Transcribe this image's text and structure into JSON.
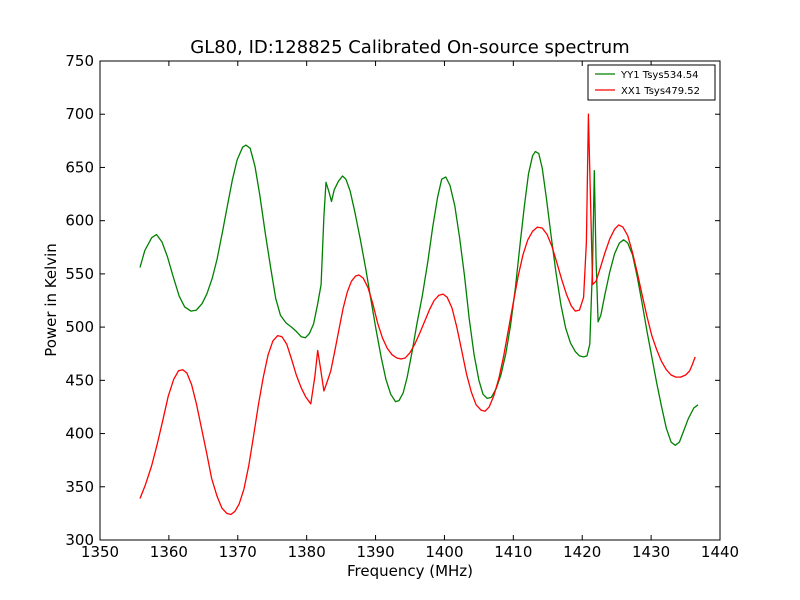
{
  "chart_data": {
    "type": "line",
    "title": "GL80, ID:128825 Calibrated On-source spectrum",
    "xlabel": "Frequency (MHz)",
    "ylabel": "Power in Kelvin",
    "xlim": [
      1350,
      1440
    ],
    "ylim": [
      300,
      750
    ],
    "xticks": [
      1350,
      1360,
      1370,
      1380,
      1390,
      1400,
      1410,
      1420,
      1430,
      1440
    ],
    "yticks": [
      300,
      350,
      400,
      450,
      500,
      550,
      600,
      650,
      700,
      750
    ],
    "xtick_labels": [
      "1350",
      "1360",
      "1370",
      "1380",
      "1390",
      "1400",
      "1410",
      "1420",
      "1430",
      "1440"
    ],
    "ytick_labels": [
      "300",
      "350",
      "400",
      "450",
      "500",
      "550",
      "600",
      "650",
      "700",
      "750"
    ],
    "legend_position": "top-right",
    "grid": false,
    "series": [
      {
        "name": "YY1 Tsys534.54",
        "color": "#008000",
        "points": [
          [
            1355.8,
            556
          ],
          [
            1356.5,
            572
          ],
          [
            1357.5,
            584
          ],
          [
            1358.2,
            587
          ],
          [
            1359,
            580
          ],
          [
            1359.8,
            566
          ],
          [
            1360.6,
            548
          ],
          [
            1361.5,
            529
          ],
          [
            1362.3,
            519
          ],
          [
            1363.2,
            515
          ],
          [
            1364,
            516
          ],
          [
            1364.8,
            522
          ],
          [
            1365.5,
            531
          ],
          [
            1366.3,
            546
          ],
          [
            1367,
            564
          ],
          [
            1367.8,
            590
          ],
          [
            1368.5,
            614
          ],
          [
            1369.2,
            638
          ],
          [
            1369.9,
            657
          ],
          [
            1370.7,
            669
          ],
          [
            1371.2,
            671
          ],
          [
            1371.8,
            668
          ],
          [
            1372.5,
            651
          ],
          [
            1373.2,
            624
          ],
          [
            1374,
            588
          ],
          [
            1374.8,
            555
          ],
          [
            1375.5,
            527
          ],
          [
            1376.2,
            511
          ],
          [
            1377,
            504
          ],
          [
            1377.8,
            500
          ],
          [
            1378.5,
            496
          ],
          [
            1379.2,
            491
          ],
          [
            1379.8,
            490
          ],
          [
            1380.4,
            494
          ],
          [
            1381,
            503
          ],
          [
            1381.6,
            522
          ],
          [
            1382.1,
            540
          ],
          [
            1382.5,
            604
          ],
          [
            1382.8,
            636
          ],
          [
            1383.2,
            628
          ],
          [
            1383.6,
            618
          ],
          [
            1384,
            629
          ],
          [
            1384.6,
            637
          ],
          [
            1385.2,
            642
          ],
          [
            1385.7,
            639
          ],
          [
            1386.3,
            628
          ],
          [
            1387,
            608
          ],
          [
            1387.8,
            582
          ],
          [
            1388.6,
            554
          ],
          [
            1389.3,
            527
          ],
          [
            1390,
            500
          ],
          [
            1390.8,
            472
          ],
          [
            1391.5,
            451
          ],
          [
            1392.2,
            437
          ],
          [
            1392.9,
            430
          ],
          [
            1393.4,
            431
          ],
          [
            1394,
            438
          ],
          [
            1394.6,
            453
          ],
          [
            1395.3,
            477
          ],
          [
            1396,
            503
          ],
          [
            1396.8,
            530
          ],
          [
            1397.6,
            562
          ],
          [
            1398.3,
            594
          ],
          [
            1399,
            622
          ],
          [
            1399.6,
            639
          ],
          [
            1400.2,
            641
          ],
          [
            1400.8,
            633
          ],
          [
            1401.5,
            614
          ],
          [
            1402.2,
            584
          ],
          [
            1402.9,
            549
          ],
          [
            1403.6,
            508
          ],
          [
            1404.3,
            474
          ],
          [
            1405,
            450
          ],
          [
            1405.6,
            437
          ],
          [
            1406.2,
            433
          ],
          [
            1406.8,
            434
          ],
          [
            1407.5,
            442
          ],
          [
            1408.2,
            455
          ],
          [
            1408.9,
            475
          ],
          [
            1409.6,
            502
          ],
          [
            1410.3,
            537
          ],
          [
            1411,
            579
          ],
          [
            1411.6,
            614
          ],
          [
            1412.2,
            644
          ],
          [
            1412.8,
            661
          ],
          [
            1413.2,
            665
          ],
          [
            1413.7,
            663
          ],
          [
            1414.2,
            649
          ],
          [
            1414.8,
            621
          ],
          [
            1415.5,
            585
          ],
          [
            1416.2,
            551
          ],
          [
            1416.9,
            521
          ],
          [
            1417.6,
            499
          ],
          [
            1418.3,
            485
          ],
          [
            1419,
            477
          ],
          [
            1419.6,
            473
          ],
          [
            1420.2,
            472
          ],
          [
            1420.7,
            473
          ],
          [
            1421.1,
            484
          ],
          [
            1421.5,
            560
          ],
          [
            1421.75,
            647
          ],
          [
            1422,
            565
          ],
          [
            1422.3,
            505
          ],
          [
            1422.7,
            511
          ],
          [
            1423.3,
            531
          ],
          [
            1424,
            552
          ],
          [
            1424.7,
            569
          ],
          [
            1425.4,
            579
          ],
          [
            1426,
            582
          ],
          [
            1426.6,
            579
          ],
          [
            1427.3,
            568
          ],
          [
            1428,
            547
          ],
          [
            1428.7,
            522
          ],
          [
            1429.4,
            496
          ],
          [
            1430.1,
            472
          ],
          [
            1430.8,
            448
          ],
          [
            1431.5,
            426
          ],
          [
            1432.2,
            405
          ],
          [
            1432.9,
            392
          ],
          [
            1433.5,
            389
          ],
          [
            1434.1,
            392
          ],
          [
            1434.7,
            402
          ],
          [
            1435.4,
            414
          ],
          [
            1436.2,
            424
          ],
          [
            1436.8,
            427
          ]
        ]
      },
      {
        "name": "XX1 Tsys479.52",
        "color": "#ff0000",
        "points": [
          [
            1355.8,
            339
          ],
          [
            1356.6,
            352
          ],
          [
            1357.5,
            370
          ],
          [
            1358.3,
            390
          ],
          [
            1359.1,
            412
          ],
          [
            1359.9,
            435
          ],
          [
            1360.7,
            451
          ],
          [
            1361.4,
            459
          ],
          [
            1362,
            460
          ],
          [
            1362.6,
            457
          ],
          [
            1363.3,
            446
          ],
          [
            1364,
            428
          ],
          [
            1364.7,
            406
          ],
          [
            1365.5,
            381
          ],
          [
            1366.2,
            358
          ],
          [
            1367,
            341
          ],
          [
            1367.7,
            330
          ],
          [
            1368.4,
            325
          ],
          [
            1369,
            324
          ],
          [
            1369.6,
            327
          ],
          [
            1370.2,
            334
          ],
          [
            1370.9,
            348
          ],
          [
            1371.6,
            370
          ],
          [
            1372.3,
            398
          ],
          [
            1373,
            427
          ],
          [
            1373.7,
            453
          ],
          [
            1374.4,
            474
          ],
          [
            1375.1,
            487
          ],
          [
            1375.8,
            492
          ],
          [
            1376.4,
            491
          ],
          [
            1377.1,
            484
          ],
          [
            1377.8,
            470
          ],
          [
            1378.5,
            455
          ],
          [
            1379.2,
            443
          ],
          [
            1379.9,
            434
          ],
          [
            1380.6,
            428
          ],
          [
            1381.2,
            454
          ],
          [
            1381.6,
            478
          ],
          [
            1382,
            462
          ],
          [
            1382.5,
            440
          ],
          [
            1383,
            449
          ],
          [
            1383.5,
            459
          ],
          [
            1384.1,
            478
          ],
          [
            1384.7,
            498
          ],
          [
            1385.3,
            518
          ],
          [
            1385.9,
            533
          ],
          [
            1386.5,
            543
          ],
          [
            1387.1,
            548
          ],
          [
            1387.6,
            549
          ],
          [
            1388.2,
            546
          ],
          [
            1388.9,
            537
          ],
          [
            1389.6,
            522
          ],
          [
            1390.3,
            504
          ],
          [
            1391,
            490
          ],
          [
            1391.7,
            480
          ],
          [
            1392.4,
            474
          ],
          [
            1393.1,
            471
          ],
          [
            1393.7,
            470
          ],
          [
            1394.3,
            471
          ],
          [
            1395,
            476
          ],
          [
            1395.7,
            484
          ],
          [
            1396.4,
            494
          ],
          [
            1397.1,
            505
          ],
          [
            1397.8,
            516
          ],
          [
            1398.5,
            525
          ],
          [
            1399.2,
            530
          ],
          [
            1399.8,
            531
          ],
          [
            1400.4,
            528
          ],
          [
            1401.1,
            518
          ],
          [
            1401.8,
            500
          ],
          [
            1402.5,
            478
          ],
          [
            1403.2,
            456
          ],
          [
            1403.9,
            439
          ],
          [
            1404.6,
            427
          ],
          [
            1405.3,
            422
          ],
          [
            1405.9,
            421
          ],
          [
            1406.5,
            425
          ],
          [
            1407.2,
            436
          ],
          [
            1407.9,
            452
          ],
          [
            1408.6,
            473
          ],
          [
            1409.3,
            498
          ],
          [
            1410,
            523
          ],
          [
            1410.7,
            548
          ],
          [
            1411.4,
            568
          ],
          [
            1412.1,
            582
          ],
          [
            1412.8,
            590
          ],
          [
            1413.5,
            594
          ],
          [
            1414.2,
            593
          ],
          [
            1414.9,
            587
          ],
          [
            1415.6,
            576
          ],
          [
            1416.3,
            561
          ],
          [
            1417,
            545
          ],
          [
            1417.7,
            531
          ],
          [
            1418.4,
            520
          ],
          [
            1419,
            515
          ],
          [
            1419.6,
            516
          ],
          [
            1420.2,
            528
          ],
          [
            1420.6,
            580
          ],
          [
            1420.9,
            700
          ],
          [
            1421.2,
            620
          ],
          [
            1421.5,
            540
          ],
          [
            1422,
            543
          ],
          [
            1422.6,
            555
          ],
          [
            1423.3,
            570
          ],
          [
            1424,
            583
          ],
          [
            1424.7,
            592
          ],
          [
            1425.3,
            596
          ],
          [
            1425.9,
            594
          ],
          [
            1426.6,
            586
          ],
          [
            1427.3,
            570
          ],
          [
            1428,
            551
          ],
          [
            1428.7,
            530
          ],
          [
            1429.4,
            510
          ],
          [
            1430.1,
            492
          ],
          [
            1430.8,
            479
          ],
          [
            1431.5,
            468
          ],
          [
            1432.2,
            460
          ],
          [
            1432.9,
            455
          ],
          [
            1433.6,
            453
          ],
          [
            1434.3,
            453
          ],
          [
            1435,
            455
          ],
          [
            1435.6,
            459
          ],
          [
            1436,
            465
          ],
          [
            1436.4,
            472
          ]
        ]
      }
    ]
  }
}
